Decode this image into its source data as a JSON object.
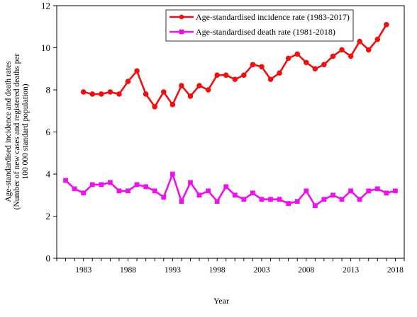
{
  "chart_data": {
    "type": "line",
    "title": "",
    "xlabel": "Year",
    "ylabel": "Age-standardised incidence and death rates",
    "ylabel_line2": "(Number of new cases and registered deaths per",
    "ylabel_line3": "100 000 standard population)",
    "xlim": [
      1980,
      2019
    ],
    "ylim": [
      0,
      12
    ],
    "x_ticks": [
      1983,
      1988,
      1993,
      1998,
      2003,
      2008,
      2013,
      2018
    ],
    "y_ticks": [
      0,
      2,
      4,
      6,
      8,
      10,
      12
    ],
    "grid": false,
    "legend_position": "top-right",
    "series": [
      {
        "name": "Age-standardised incidence rate (1983-2017)",
        "color": "#ee1111",
        "marker": "circle",
        "x": [
          1983,
          1984,
          1985,
          1986,
          1987,
          1988,
          1989,
          1990,
          1991,
          1992,
          1993,
          1994,
          1995,
          1996,
          1997,
          1998,
          1999,
          2000,
          2001,
          2002,
          2003,
          2004,
          2005,
          2006,
          2007,
          2008,
          2009,
          2010,
          2011,
          2012,
          2013,
          2014,
          2015,
          2016,
          2017
        ],
        "values": [
          7.9,
          7.8,
          7.8,
          7.9,
          7.8,
          8.4,
          8.9,
          7.8,
          7.2,
          7.9,
          7.3,
          8.2,
          7.7,
          8.2,
          8.0,
          8.7,
          8.7,
          8.5,
          8.7,
          9.2,
          9.1,
          8.5,
          8.8,
          9.5,
          9.7,
          9.3,
          9.0,
          9.2,
          9.6,
          9.9,
          9.6,
          10.3,
          9.9,
          10.4,
          11.1
        ]
      },
      {
        "name": "Age-standardised death rate (1981-2018)",
        "color": "#ee11ee",
        "marker": "square",
        "x": [
          1981,
          1982,
          1983,
          1984,
          1985,
          1986,
          1987,
          1988,
          1989,
          1990,
          1991,
          1992,
          1993,
          1994,
          1995,
          1996,
          1997,
          1998,
          1999,
          2000,
          2001,
          2002,
          2003,
          2004,
          2005,
          2006,
          2007,
          2008,
          2009,
          2010,
          2011,
          2012,
          2013,
          2014,
          2015,
          2016,
          2017,
          2018
        ],
        "values": [
          3.7,
          3.3,
          3.1,
          3.5,
          3.5,
          3.6,
          3.2,
          3.2,
          3.5,
          3.4,
          3.2,
          2.9,
          4.0,
          2.7,
          3.6,
          3.0,
          3.2,
          2.7,
          3.4,
          3.0,
          2.8,
          3.1,
          2.8,
          2.8,
          2.8,
          2.6,
          2.7,
          3.2,
          2.5,
          2.8,
          3.0,
          2.8,
          3.2,
          2.8,
          3.2,
          3.3,
          3.1,
          3.2
        ]
      }
    ]
  }
}
